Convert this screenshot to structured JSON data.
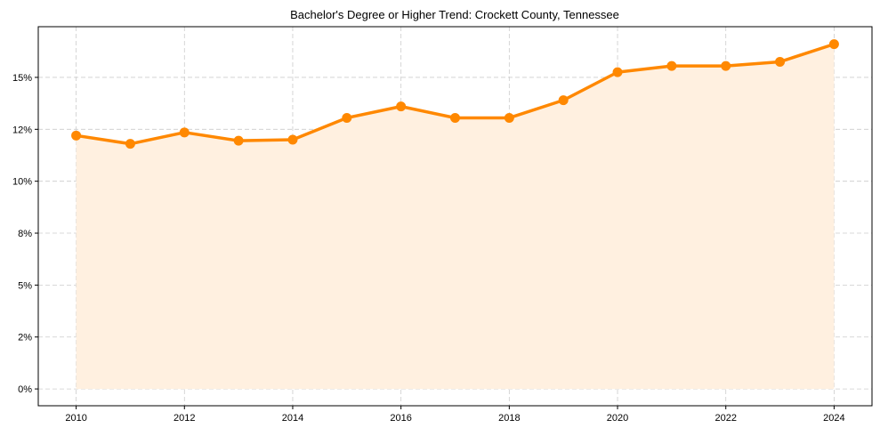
{
  "chart_data": {
    "type": "line",
    "title": "Bachelor's Degree or Higher Trend: Crockett County, Tennessee",
    "xlabel": "",
    "ylabel": "",
    "x": [
      2010,
      2011,
      2012,
      2013,
      2014,
      2015,
      2016,
      2017,
      2018,
      2019,
      2020,
      2021,
      2022,
      2023,
      2024
    ],
    "series": [
      {
        "name": "Bachelor's Degree or Higher",
        "values": [
          12.2,
          11.8,
          12.35,
          11.95,
          12.0,
          13.05,
          13.6,
          13.05,
          13.05,
          13.9,
          15.25,
          15.55,
          15.55,
          15.75,
          16.6
        ]
      }
    ],
    "xticks": [
      2010,
      2012,
      2014,
      2016,
      2018,
      2020,
      2022,
      2024
    ],
    "xtick_labels": [
      "2010",
      "2012",
      "2014",
      "2016",
      "2018",
      "2020",
      "2022",
      "2024"
    ],
    "yticks": [
      0,
      2.5,
      5,
      7.5,
      10,
      12.5,
      15
    ],
    "ytick_labels": [
      "0%",
      "2%",
      "5%",
      "8%",
      "10%",
      "12%",
      "15%"
    ],
    "xlim": [
      2009.3,
      2024.7
    ],
    "ylim": [
      -0.81,
      17.44
    ],
    "grid": true,
    "colors": {
      "line": "#ff8800",
      "fill": "#fff0e0"
    }
  }
}
